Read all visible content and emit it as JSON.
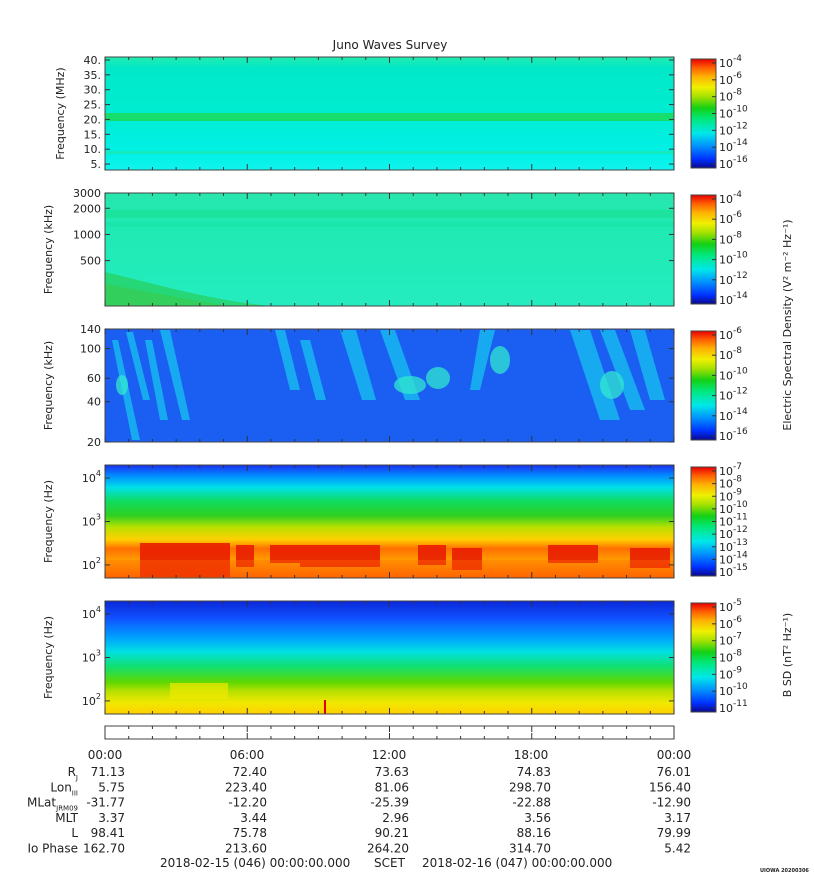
{
  "title": "Juno Waves Survey",
  "footer": {
    "start": "2018-02-15 (046) 00:00:00.000",
    "scet": "SCET",
    "end": "2018-02-16 (047) 00:00:00.000",
    "stamp": "UIOWA 20200306"
  },
  "colors": {
    "spectrum": [
      "#0a0a8c",
      "#0030ff",
      "#0090ff",
      "#00e8e8",
      "#00e87a",
      "#14d014",
      "#a0e000",
      "#f0f000",
      "#ffb000",
      "#ff6000",
      "#e80000"
    ]
  },
  "chart_data": [
    {
      "type": "heatmap",
      "id": "panel1",
      "ylabel": "Frequency (MHz)",
      "yticks": [
        "40.",
        "35.",
        "30.",
        "25.",
        "20.",
        "15.",
        "10.",
        "5."
      ],
      "ytick_values": [
        40,
        35,
        30,
        25,
        20,
        15,
        10,
        5
      ],
      "ylim": [
        3,
        41
      ],
      "yscale": "linear",
      "colorbar": {
        "ticks": [
          [
            "10",
            "-4"
          ],
          [
            "10",
            "-6"
          ],
          [
            "10",
            "-8"
          ],
          [
            "10",
            "-10"
          ],
          [
            "10",
            "-12"
          ],
          [
            "10",
            "-14"
          ],
          [
            "10",
            "-16"
          ]
        ],
        "label": ""
      },
      "features": [
        {
          "desc": "band",
          "freq": 21,
          "level": "green"
        }
      ]
    },
    {
      "type": "heatmap",
      "id": "panel2",
      "ylabel": "Frequency (kHz)",
      "yticks": [
        "3000",
        "2000",
        "1000",
        "500"
      ],
      "ytick_values": [
        3000,
        2000,
        1000,
        500
      ],
      "ylim": [
        150,
        3000
      ],
      "yscale": "log",
      "colorbar": {
        "ticks": [
          [
            "10",
            "-4"
          ],
          [
            "10",
            "-6"
          ],
          [
            "10",
            "-8"
          ],
          [
            "10",
            "-10"
          ],
          [
            "10",
            "-12"
          ],
          [
            "10",
            "-14"
          ]
        ],
        "label": ""
      }
    },
    {
      "type": "heatmap",
      "id": "panel3",
      "ylabel": "Frequency (kHz)",
      "yticks": [
        "140",
        "100",
        "60",
        "40",
        "20"
      ],
      "ytick_values": [
        140,
        100,
        60,
        40,
        20
      ],
      "ylim": [
        20,
        140
      ],
      "yscale": "log",
      "colorbar": {
        "ticks": [
          [
            "10",
            "-6"
          ],
          [
            "10",
            "-8"
          ],
          [
            "10",
            "-10"
          ],
          [
            "10",
            "-12"
          ],
          [
            "10",
            "-14"
          ],
          [
            "10",
            "-16"
          ]
        ],
        "label": ""
      }
    },
    {
      "type": "heatmap",
      "id": "panel4",
      "ylabel": "Frequency (Hz)",
      "yticks": [
        [
          "10",
          "4"
        ],
        [
          "10",
          "3"
        ],
        [
          "10",
          "2"
        ]
      ],
      "ytick_values": [
        10000,
        1000,
        100
      ],
      "ylim": [
        50,
        20000
      ],
      "yscale": "log",
      "colorbar": {
        "ticks": [
          [
            "10",
            "-7"
          ],
          [
            "10",
            "-8"
          ],
          [
            "10",
            "-9"
          ],
          [
            "10",
            "-10"
          ],
          [
            "10",
            "-11"
          ],
          [
            "10",
            "-12"
          ],
          [
            "10",
            "-13"
          ],
          [
            "10",
            "-14"
          ],
          [
            "10",
            "-15"
          ]
        ],
        "label": ""
      }
    },
    {
      "type": "heatmap",
      "id": "panel5",
      "ylabel": "Frequency (Hz)",
      "yticks": [
        [
          "10",
          "4"
        ],
        [
          "10",
          "3"
        ],
        [
          "10",
          "2"
        ]
      ],
      "ytick_values": [
        10000,
        1000,
        100
      ],
      "ylim": [
        50,
        20000
      ],
      "yscale": "log",
      "colorbar": {
        "ticks": [
          [
            "10",
            "-5"
          ],
          [
            "10",
            "-6"
          ],
          [
            "10",
            "-7"
          ],
          [
            "10",
            "-8"
          ],
          [
            "10",
            "-9"
          ],
          [
            "10",
            "-10"
          ],
          [
            "10",
            "-11"
          ]
        ],
        "label": "B SD (nT² Hz⁻¹)"
      }
    }
  ],
  "shared_colorbar_label": "Electric Spectral Density (V² m⁻² Hz⁻¹)",
  "ephemeris": {
    "times": [
      "00:00",
      "06:00",
      "12:00",
      "18:00",
      "00:00"
    ],
    "rows": [
      {
        "label": "R",
        "sub": "J",
        "values": [
          "71.13",
          "72.40",
          "73.63",
          "74.83",
          "76.01"
        ]
      },
      {
        "label": "Lon",
        "sub": "III",
        "values": [
          "5.75",
          "223.40",
          "81.06",
          "298.70",
          "156.40"
        ]
      },
      {
        "label": "MLat",
        "sub": "JRM09",
        "values": [
          "-31.77",
          "-12.20",
          "-25.39",
          "-22.88",
          "-12.90"
        ]
      },
      {
        "label": "MLT",
        "sub": "",
        "values": [
          "3.37",
          "3.44",
          "2.96",
          "3.56",
          "3.17"
        ]
      },
      {
        "label": "L",
        "sub": "",
        "values": [
          "98.41",
          "75.78",
          "90.21",
          "88.16",
          "79.99"
        ]
      },
      {
        "label": "Io Phase",
        "sub": "",
        "values": [
          "162.70",
          "213.60",
          "264.20",
          "314.70",
          "5.42"
        ]
      }
    ]
  }
}
